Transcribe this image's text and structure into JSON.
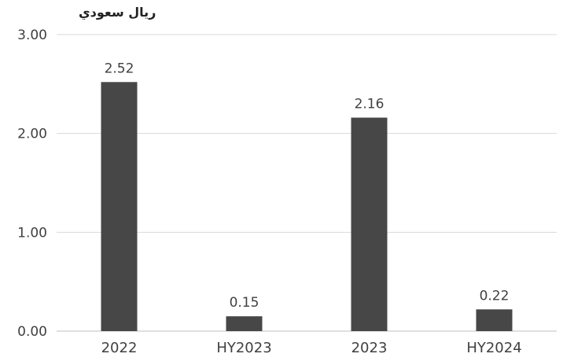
{
  "chart_data": {
    "type": "bar",
    "unit_label": "ريال سعودي",
    "categories": [
      "2022",
      "HY2023",
      "2023",
      "HY2024"
    ],
    "values": [
      2.52,
      0.15,
      2.16,
      0.22
    ],
    "data_labels": [
      "2.52",
      "0.15",
      "2.16",
      "0.22"
    ],
    "y_ticks": [
      "0.00",
      "1.00",
      "2.00",
      "3.00"
    ],
    "ylim": [
      0,
      3
    ],
    "grid": true,
    "legend": "none",
    "colors": {
      "bar": "#474747",
      "grid": "#d9d9d9",
      "text": "#404040"
    }
  }
}
